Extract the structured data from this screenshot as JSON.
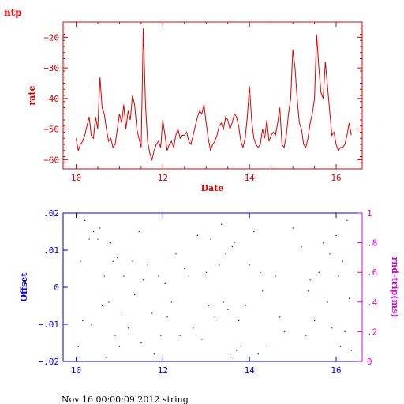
{
  "colors": {
    "top": "#dd0000",
    "offset": "#0000ee",
    "rtt": "#dd00dd"
  },
  "footer": "Nov 16 00:00:09 2012 string",
  "chart_data": [
    {
      "type": "line",
      "title": "ntp",
      "xlabel": "Date",
      "ylabel": "rate",
      "xlim": [
        9.7,
        16.6
      ],
      "ylim": [
        -63,
        -15
      ],
      "xticks": [
        10,
        12,
        14,
        16
      ],
      "yticks": [
        -60,
        -50,
        -40,
        -30,
        -20
      ],
      "series": [
        {
          "x": [
            10.0,
            10.05,
            10.1,
            10.15,
            10.2,
            10.25,
            10.3,
            10.35,
            10.4,
            10.45,
            10.5,
            10.55,
            10.6,
            10.65,
            10.7,
            10.75,
            10.8,
            10.85,
            10.9,
            10.95,
            11.0,
            11.05,
            11.1,
            11.15,
            11.2,
            11.25,
            11.3,
            11.35,
            11.4,
            11.45,
            11.5,
            11.55,
            11.6,
            11.65,
            11.7,
            11.75,
            11.8,
            11.85,
            11.9,
            11.95,
            12.0,
            12.05,
            12.1,
            12.15,
            12.2,
            12.25,
            12.3,
            12.35,
            12.4,
            12.45,
            12.5,
            12.55,
            12.6,
            12.65,
            12.7,
            12.75,
            12.8,
            12.85,
            12.9,
            12.95,
            13.0,
            13.05,
            13.1,
            13.15,
            13.2,
            13.25,
            13.3,
            13.35,
            13.4,
            13.45,
            13.5,
            13.55,
            13.6,
            13.65,
            13.7,
            13.75,
            13.8,
            13.85,
            13.9,
            13.95,
            14.0,
            14.05,
            14.1,
            14.15,
            14.2,
            14.25,
            14.3,
            14.35,
            14.4,
            14.45,
            14.5,
            14.55,
            14.6,
            14.65,
            14.7,
            14.75,
            14.8,
            14.85,
            14.9,
            14.95,
            15.0,
            15.05,
            15.1,
            15.15,
            15.2,
            15.25,
            15.3,
            15.35,
            15.4,
            15.45,
            15.5,
            15.55,
            15.6,
            15.65,
            15.7,
            15.75,
            15.8,
            15.85,
            15.9,
            15.95,
            16.0,
            16.05,
            16.1,
            16.15,
            16.2,
            16.25,
            16.3,
            16.35
          ],
          "values": [
            -53,
            -57,
            -55,
            -54,
            -52,
            -49,
            -46,
            -52,
            -53,
            -46,
            -50,
            -33,
            -43,
            -45,
            -50,
            -54,
            -53,
            -56,
            -55,
            -50,
            -45,
            -48,
            -42,
            -50,
            -44,
            -47,
            -39,
            -42,
            -50,
            -53,
            -56,
            -17,
            -42,
            -54,
            -58,
            -60,
            -57,
            -55,
            -54,
            -56,
            -47,
            -52,
            -57,
            -55,
            -54,
            -56,
            -52,
            -50,
            -53,
            -52,
            -52,
            -51,
            -54,
            -55,
            -52,
            -49,
            -46,
            -44,
            -45,
            -42,
            -48,
            -53,
            -57,
            -55,
            -54,
            -52,
            -49,
            -48,
            -50,
            -46,
            -47,
            -50,
            -48,
            -45,
            -46,
            -49,
            -54,
            -56,
            -53,
            -46,
            -36,
            -47,
            -53,
            -55,
            -56,
            -55,
            -50,
            -53,
            -47,
            -54,
            -52,
            -51,
            -52,
            -48,
            -43,
            -55,
            -56,
            -52,
            -45,
            -40,
            -24,
            -30,
            -40,
            -48,
            -50,
            -55,
            -56,
            -53,
            -48,
            -45,
            -40,
            -19,
            -30,
            -38,
            -40,
            -28,
            -36,
            -44,
            -52,
            -51,
            -55,
            -57,
            -56,
            -56,
            -55,
            -52,
            -48,
            -52
          ]
        }
      ]
    },
    {
      "type": "scatter",
      "xlim": [
        9.7,
        16.6
      ],
      "xticks": [
        10,
        12,
        14,
        16
      ],
      "y_left": {
        "label": "Offset",
        "ylim": [
          -0.02,
          0.02
        ],
        "ticks": [
          -0.02,
          -0.01,
          0,
          0.01,
          0.02
        ]
      },
      "y_right": {
        "label": "rnd-trip(ms)",
        "ylim": [
          0,
          1
        ],
        "ticks": [
          0,
          0.2,
          0.4,
          0.6,
          0.8,
          1
        ]
      },
      "series": [
        {
          "x": [
            10.05,
            10.1,
            10.15,
            10.2,
            10.3,
            10.35,
            10.4,
            10.5,
            10.55,
            10.6,
            10.65,
            10.7,
            10.75,
            10.8,
            10.85,
            10.9,
            10.95,
            11.0,
            11.05,
            11.1,
            11.2,
            11.3,
            11.35,
            11.45,
            11.5,
            11.55,
            11.65,
            11.75,
            11.8,
            11.9,
            11.95,
            12.05,
            12.1,
            12.2,
            12.3,
            12.4,
            12.5,
            12.6,
            12.7,
            12.8,
            12.9,
            13.0,
            13.05,
            13.1,
            13.2,
            13.3,
            13.35,
            13.4,
            13.45,
            13.5,
            13.55,
            13.6,
            13.65,
            13.7,
            13.75,
            13.8,
            13.9,
            14.0,
            14.1,
            14.2,
            14.25,
            14.3,
            14.4,
            14.6,
            14.7,
            14.8,
            15.0,
            15.2,
            15.3,
            15.35,
            15.4,
            15.5,
            15.6,
            15.7,
            15.8,
            15.85,
            15.9,
            16.0,
            16.05,
            16.1,
            16.15,
            16.2,
            16.25,
            16.3,
            16.35
          ],
          "values": [
            -0.016,
            0.007,
            -0.009,
            0.018,
            0.013,
            -0.01,
            0.015,
            0.013,
            0.016,
            -0.005,
            0.003,
            -0.019,
            -0.004,
            0.012,
            0.007,
            -0.013,
            0.008,
            -0.016,
            -0.007,
            0.003,
            -0.011,
            0.007,
            -0.002,
            0.015,
            -0.015,
            0.002,
            0.006,
            -0.007,
            -0.018,
            0.003,
            -0.013,
            0.001,
            -0.008,
            -0.004,
            0.009,
            -0.013,
            0.005,
            0.003,
            -0.011,
            0.014,
            -0.014,
            0.004,
            -0.005,
            0.013,
            -0.008,
            0.006,
            0.017,
            -0.004,
            0.009,
            -0.006,
            -0.019,
            0.011,
            0.012,
            -0.017,
            -0.009,
            -0.016,
            -0.005,
            0.006,
            0.015,
            -0.018,
            0.004,
            -0.001,
            -0.016,
            0.003,
            -0.008,
            -0.012,
            0.016,
            0.011,
            -0.013,
            -0.001,
            0.002,
            -0.009,
            0.004,
            0.012,
            -0.004,
            0.009,
            -0.011,
            0.014,
            0.003,
            -0.016,
            0.007,
            -0.012,
            0.018,
            -0.003,
            -0.017
          ]
        }
      ]
    }
  ]
}
